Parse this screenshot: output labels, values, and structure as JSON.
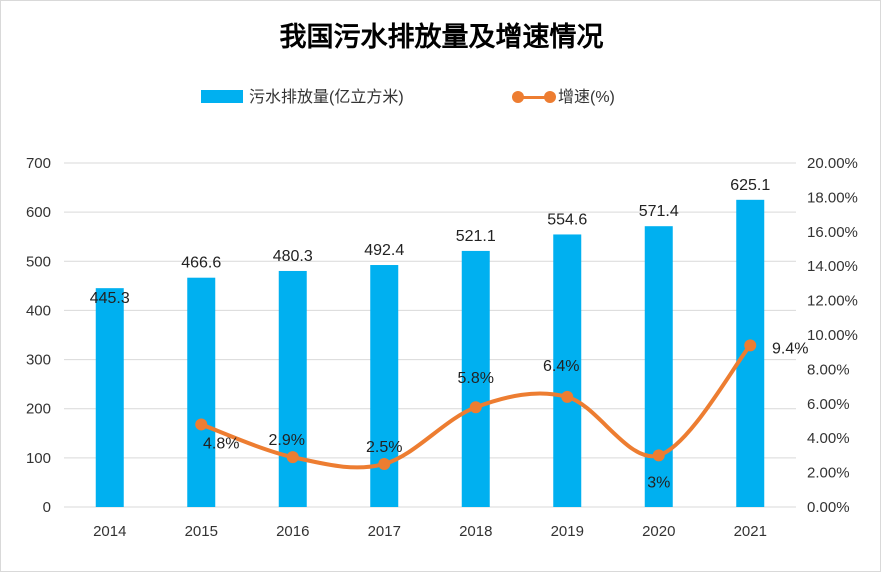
{
  "chart_data": {
    "type": "bar+line",
    "title": "我国污水排放量及增速情况",
    "categories": [
      "2014",
      "2015",
      "2016",
      "2017",
      "2018",
      "2019",
      "2020",
      "2021"
    ],
    "series": [
      {
        "name": "污水排放量(亿立方米)",
        "type": "bar",
        "axis": "left",
        "color": "#00B0F0",
        "values": [
          445.3,
          466.6,
          480.3,
          492.4,
          521.1,
          554.6,
          571.4,
          625.1
        ],
        "labels": [
          "445.3",
          "466.6",
          "480.3",
          "492.4",
          "521.1",
          "554.6",
          "571.4",
          "625.1"
        ]
      },
      {
        "name": "增速(%)",
        "type": "line",
        "axis": "right",
        "color": "#ED7D31",
        "smooth": true,
        "values": [
          null,
          4.8,
          2.9,
          2.5,
          5.8,
          6.4,
          3.0,
          9.4
        ],
        "labels": [
          "",
          "4.8%",
          "2.9%",
          "2.5%",
          "5.8%",
          "6.4%",
          "3%",
          "9.4%"
        ]
      }
    ],
    "y_left": {
      "range": [
        0,
        700
      ],
      "ticks": [
        "0",
        "100",
        "200",
        "300",
        "400",
        "500",
        "600",
        "700"
      ]
    },
    "y_right": {
      "range": [
        0,
        20
      ],
      "ticks": [
        "0.00%",
        "2.00%",
        "4.00%",
        "6.00%",
        "8.00%",
        "10.00%",
        "12.00%",
        "14.00%",
        "16.00%",
        "18.00%",
        "20.00%"
      ]
    },
    "grid": true,
    "legend": "top"
  }
}
